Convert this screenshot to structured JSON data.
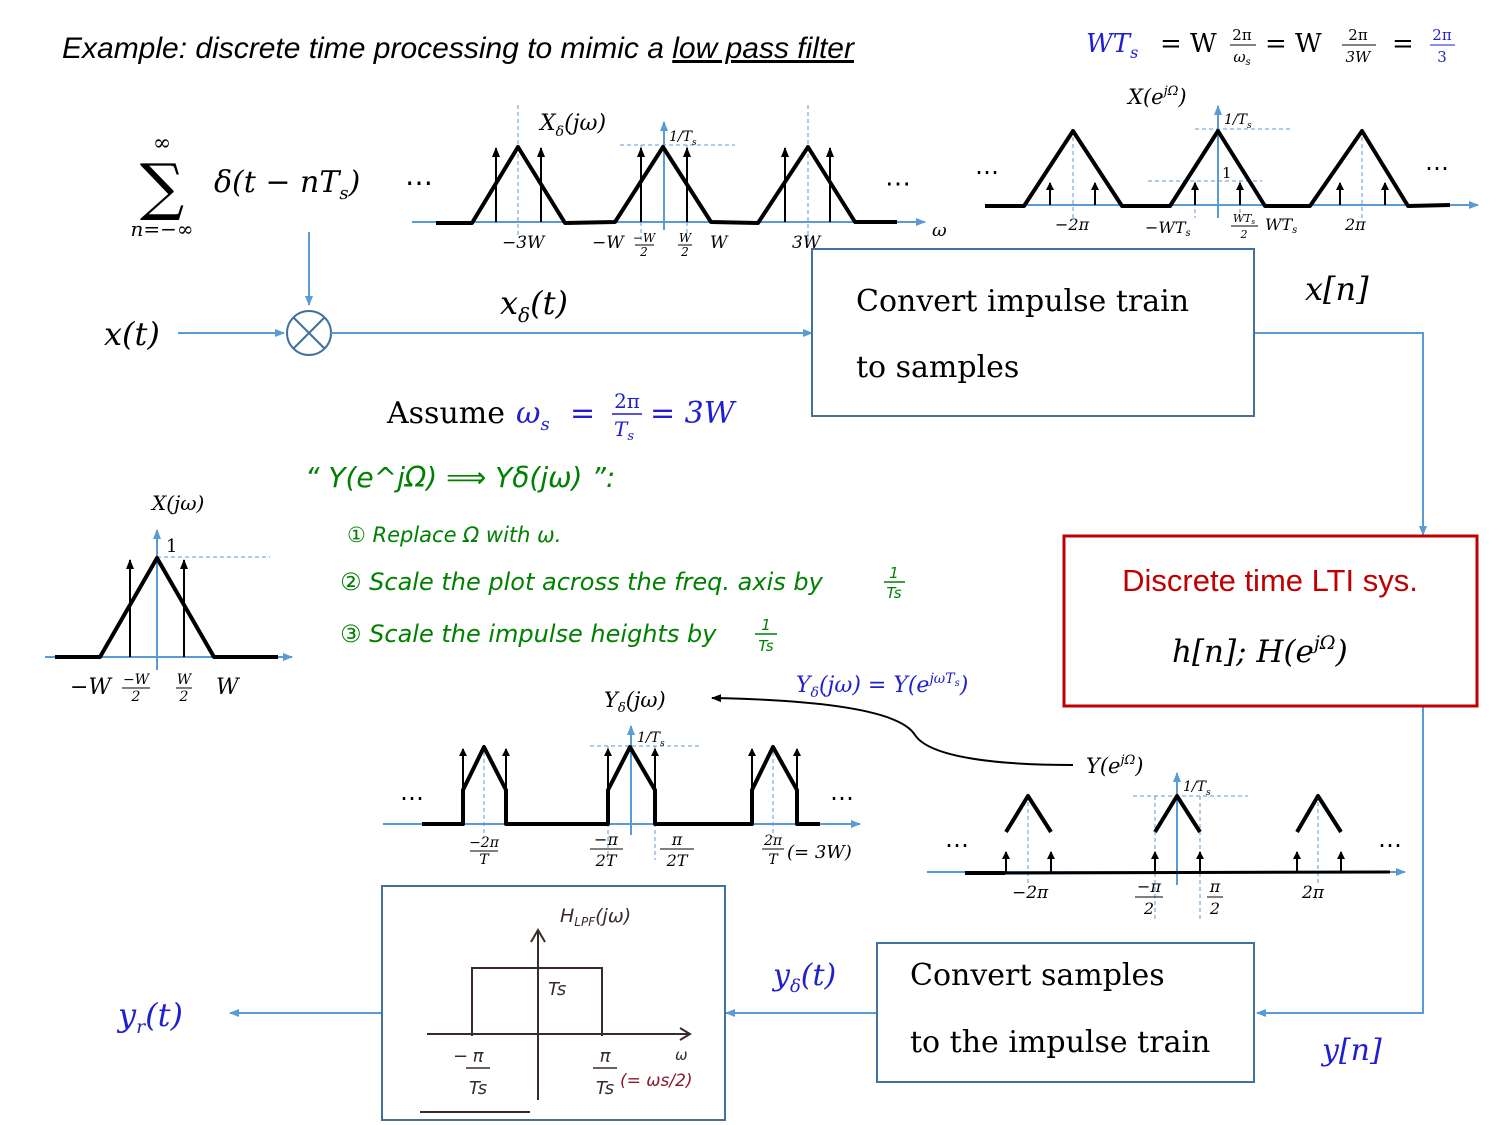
{
  "title": {
    "prefix": "Example: discrete time processing to mimic a ",
    "underlined": "low pass filter"
  },
  "header_eq": {
    "lhs": "WT",
    "lhs_sub": "s",
    "eq1": "= W",
    "f1_num": "2π",
    "f1_den": "ω",
    "f1_den_sub": "s",
    "eq2": "= W",
    "f2_num": "2π",
    "f2_den": "3W",
    "eq3": "=",
    "f3_num": "2π",
    "f3_den": "3"
  },
  "sum": {
    "sym": "∑",
    "top": "∞",
    "bottom": "n=−∞",
    "term": "δ(t − nT",
    "term_sub": "s",
    "term_end": ")",
    "dots": "⋯"
  },
  "xdelta_plot": {
    "label": "X",
    "label_sub": "δ",
    "label_arg": "(jω)",
    "height": "1/T",
    "height_sub": "s",
    "axis": "ω",
    "dots_left": "⋯",
    "dots_right": "⋯",
    "ticks": [
      "−3W",
      "−W",
      "−W",
      "2",
      "W",
      "2",
      "W",
      "3W"
    ]
  },
  "xomega_plot": {
    "label": "X(e",
    "label_sup": "jΩ",
    "label_end": ")",
    "height": "1/T",
    "height_sub": "s",
    "one": "1",
    "dots_left": "⋯",
    "dots_right": "⋯",
    "ticks": [
      "−2π",
      "−WT",
      "s",
      "WT",
      "s",
      "2",
      "WT",
      "s",
      "2π"
    ]
  },
  "labels": {
    "xt": "x(t)",
    "xdt": "x",
    "xdt_sub": "δ",
    "xdt_end": "(t)",
    "xn": "x[n]",
    "yn": "y[n]",
    "ydt": "y",
    "ydt_sub": "δ",
    "ydt_end": "(t)",
    "yrt": "y",
    "yrt_sub": "r",
    "yrt_end": "(t)"
  },
  "box_convert1": {
    "line1": "Convert impulse train",
    "line2": "to samples"
  },
  "box_lti": {
    "line1": "Discrete time LTI  sys.",
    "line2": "h[n];   H(e",
    "line2_sup": "jΩ",
    "line2_end": ")"
  },
  "box_convert2": {
    "line1": "Convert samples",
    "line2": "to the impulse train"
  },
  "assume": {
    "word": "Assume",
    "eq": "ω",
    "eq_sub": "s",
    "eq2": "=",
    "num": "2π",
    "den": "T",
    "den_sub": "s",
    "eq3": "= 3W"
  },
  "notes": {
    "heading": "“ Y(e^jΩ) ⟹ Yδ(jω) ”:",
    "item1": "① Replace Ω with ω.",
    "item2": "② Scale the plot across the freq. axis by",
    "item2_frac_num": "1",
    "item2_frac_den": "Ts",
    "item3": "③ Scale the impulse heights by",
    "item3_frac_num": "1",
    "item3_frac_den": "Ts"
  },
  "xjw_plot": {
    "label": "X(jω)",
    "one": "1",
    "ticks": [
      "−W",
      "−W",
      "2",
      "W",
      "2",
      "W"
    ]
  },
  "ydelta_eq": {
    "text": "Y",
    "sub": "δ",
    "mid": "(jω) = Y(e",
    "sup": "jωT",
    "sup_sub": "s",
    "end": ")"
  },
  "ydelta_plot": {
    "label": "Y",
    "label_sub": "δ",
    "label_arg": "(jω)",
    "height": "1/T",
    "height_sub": "s",
    "dots_left": "⋯",
    "dots_right": "⋯",
    "ticks": [
      "−2π",
      "T",
      "−π",
      "2T",
      "π",
      "2T",
      "2π",
      "T",
      "(= 3W)"
    ]
  },
  "yomega_plot": {
    "label": "Y(e",
    "label_sup": "jΩ",
    "label_end": ")",
    "height": "1/T",
    "height_sub": "s",
    "dots_left": "⋯",
    "dots_right": "⋯",
    "ticks": [
      "−2π",
      "−π",
      "2",
      "π",
      "2",
      "2π"
    ]
  },
  "hlpf": {
    "title": "H",
    "title_sub": "LPF",
    "title_end": "(jω)",
    "height": "Ts",
    "axis": "ω",
    "left_num": "π",
    "left_den": "Ts",
    "right_num": "π",
    "right_den": "Ts",
    "right_note": "(= ωs/2)"
  },
  "colors": {
    "blue_line": "#5b9bd5",
    "box_border": "#41719c",
    "red": "#c00000",
    "green": "#008000",
    "eq_blue": "#1f1fcf"
  }
}
